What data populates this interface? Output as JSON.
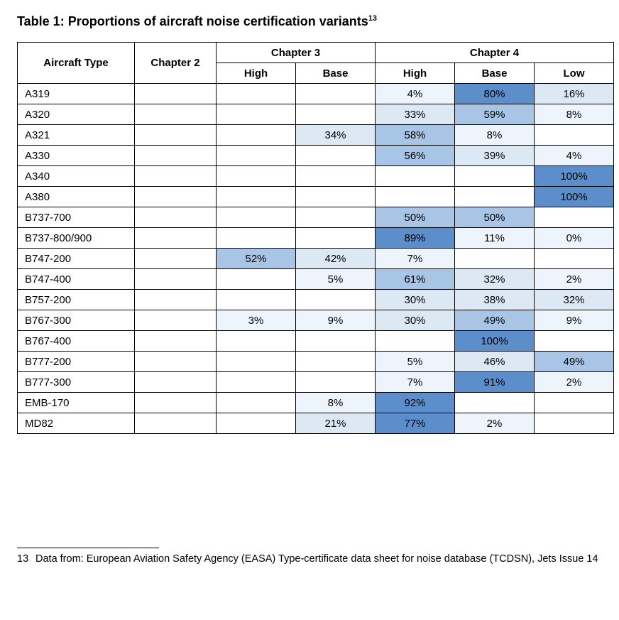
{
  "title_prefix": "Table 1: ",
  "title_main": "Proportions of aircraft noise certification variants",
  "title_sup": "13",
  "columns": {
    "aircraft": "Aircraft Type",
    "ch2": "Chapter 2",
    "ch3": "Chapter 3",
    "ch4": "Chapter 4",
    "sub_high": "High",
    "sub_base": "Base",
    "sub_low": "Low"
  },
  "palette": {
    "dark": "#5b8ecb",
    "mid": "#a9c5e6",
    "light": "#dde8f5",
    "pale": "#eef4fb",
    "none": "#ffffff"
  },
  "rows": [
    {
      "aircraft": "A319",
      "cells": [
        {
          "v": ""
        },
        {
          "v": ""
        },
        {
          "v": ""
        },
        {
          "v": "4%",
          "c": "pale"
        },
        {
          "v": "80%",
          "c": "dark"
        },
        {
          "v": "16%",
          "c": "light"
        }
      ]
    },
    {
      "aircraft": "A320",
      "cells": [
        {
          "v": ""
        },
        {
          "v": ""
        },
        {
          "v": ""
        },
        {
          "v": "33%",
          "c": "light"
        },
        {
          "v": "59%",
          "c": "mid"
        },
        {
          "v": "8%",
          "c": "pale"
        }
      ]
    },
    {
      "aircraft": "A321",
      "cells": [
        {
          "v": ""
        },
        {
          "v": ""
        },
        {
          "v": "34%",
          "c": "light"
        },
        {
          "v": "58%",
          "c": "mid"
        },
        {
          "v": "8%",
          "c": "pale"
        },
        {
          "v": ""
        }
      ]
    },
    {
      "aircraft": "A330",
      "cells": [
        {
          "v": ""
        },
        {
          "v": ""
        },
        {
          "v": ""
        },
        {
          "v": "56%",
          "c": "mid"
        },
        {
          "v": "39%",
          "c": "light"
        },
        {
          "v": "4%",
          "c": "pale"
        }
      ]
    },
    {
      "aircraft": "A340",
      "cells": [
        {
          "v": ""
        },
        {
          "v": ""
        },
        {
          "v": ""
        },
        {
          "v": ""
        },
        {
          "v": ""
        },
        {
          "v": "100%",
          "c": "dark"
        }
      ]
    },
    {
      "aircraft": "A380",
      "cells": [
        {
          "v": ""
        },
        {
          "v": ""
        },
        {
          "v": ""
        },
        {
          "v": ""
        },
        {
          "v": ""
        },
        {
          "v": "100%",
          "c": "dark"
        }
      ]
    },
    {
      "aircraft": "B737-700",
      "cells": [
        {
          "v": ""
        },
        {
          "v": ""
        },
        {
          "v": ""
        },
        {
          "v": "50%",
          "c": "mid"
        },
        {
          "v": "50%",
          "c": "mid"
        },
        {
          "v": ""
        }
      ]
    },
    {
      "aircraft": "B737-800/900",
      "cells": [
        {
          "v": ""
        },
        {
          "v": ""
        },
        {
          "v": ""
        },
        {
          "v": "89%",
          "c": "dark"
        },
        {
          "v": "11%",
          "c": "pale"
        },
        {
          "v": "0%",
          "c": "pale"
        }
      ]
    },
    {
      "aircraft": "B747-200",
      "cells": [
        {
          "v": ""
        },
        {
          "v": "52%",
          "c": "mid"
        },
        {
          "v": "42%",
          "c": "light"
        },
        {
          "v": "7%",
          "c": "pale"
        },
        {
          "v": ""
        },
        {
          "v": ""
        }
      ]
    },
    {
      "aircraft": "B747-400",
      "cells": [
        {
          "v": ""
        },
        {
          "v": ""
        },
        {
          "v": "5%",
          "c": "pale"
        },
        {
          "v": "61%",
          "c": "mid"
        },
        {
          "v": "32%",
          "c": "light"
        },
        {
          "v": "2%",
          "c": "pale"
        }
      ]
    },
    {
      "aircraft": "B757-200",
      "cells": [
        {
          "v": ""
        },
        {
          "v": ""
        },
        {
          "v": ""
        },
        {
          "v": "30%",
          "c": "light"
        },
        {
          "v": "38%",
          "c": "light"
        },
        {
          "v": "32%",
          "c": "light"
        }
      ]
    },
    {
      "aircraft": "B767-300",
      "cells": [
        {
          "v": ""
        },
        {
          "v": "3%",
          "c": "pale"
        },
        {
          "v": "9%",
          "c": "pale"
        },
        {
          "v": "30%",
          "c": "light"
        },
        {
          "v": "49%",
          "c": "mid"
        },
        {
          "v": "9%",
          "c": "pale"
        }
      ]
    },
    {
      "aircraft": "B767-400",
      "cells": [
        {
          "v": ""
        },
        {
          "v": ""
        },
        {
          "v": ""
        },
        {
          "v": ""
        },
        {
          "v": "100%",
          "c": "dark"
        },
        {
          "v": ""
        }
      ]
    },
    {
      "aircraft": "B777-200",
      "cells": [
        {
          "v": ""
        },
        {
          "v": ""
        },
        {
          "v": ""
        },
        {
          "v": "5%",
          "c": "pale"
        },
        {
          "v": "46%",
          "c": "light"
        },
        {
          "v": "49%",
          "c": "mid"
        }
      ]
    },
    {
      "aircraft": "B777-300",
      "cells": [
        {
          "v": ""
        },
        {
          "v": ""
        },
        {
          "v": ""
        },
        {
          "v": "7%",
          "c": "pale"
        },
        {
          "v": "91%",
          "c": "dark"
        },
        {
          "v": "2%",
          "c": "pale"
        }
      ]
    },
    {
      "aircraft": "EMB-170",
      "cells": [
        {
          "v": ""
        },
        {
          "v": ""
        },
        {
          "v": "8%",
          "c": "pale"
        },
        {
          "v": "92%",
          "c": "dark"
        },
        {
          "v": ""
        },
        {
          "v": ""
        }
      ]
    },
    {
      "aircraft": "MD82",
      "cells": [
        {
          "v": ""
        },
        {
          "v": ""
        },
        {
          "v": "21%",
          "c": "light"
        },
        {
          "v": "77%",
          "c": "dark"
        },
        {
          "v": "2%",
          "c": "pale"
        },
        {
          "v": ""
        }
      ]
    }
  ],
  "footnote": {
    "num": "13",
    "text": "Data from: European Aviation Safety Agency (EASA) Type-certificate data sheet for noise database (TCDSN), Jets Issue 14"
  }
}
